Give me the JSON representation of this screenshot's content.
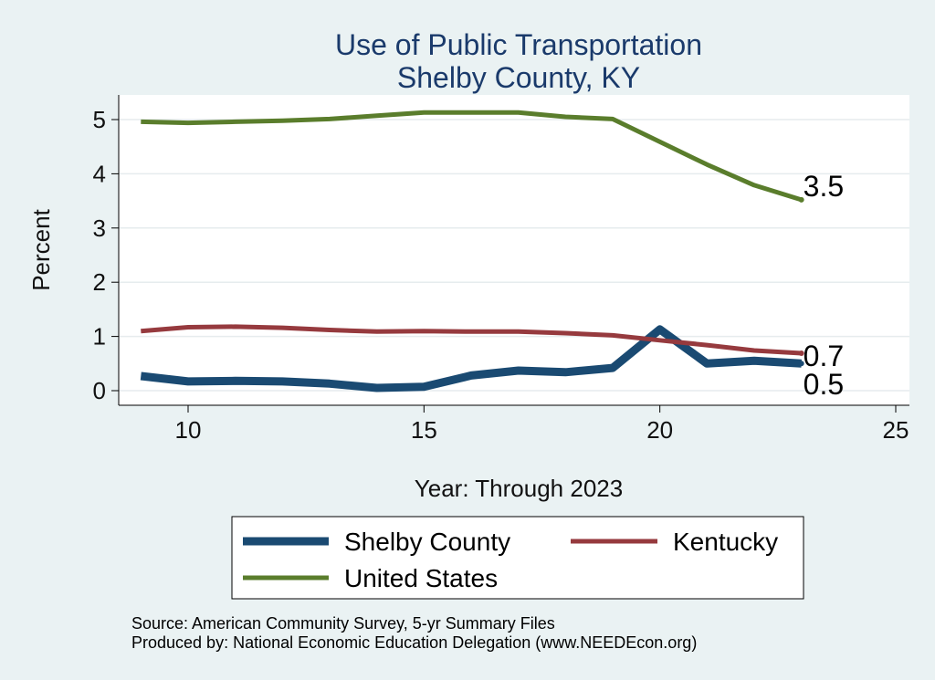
{
  "chart_data": {
    "type": "line",
    "title": "Use of Public Transportation",
    "subtitle": "Shelby County, KY",
    "xlabel": "Year: Through 2023",
    "ylabel": "Percent",
    "xlim": [
      9,
      25
    ],
    "ylim": [
      0,
      5.2
    ],
    "xticks": [
      10,
      15,
      20,
      25
    ],
    "yticks": [
      0,
      1,
      2,
      3,
      4,
      5
    ],
    "grid": true,
    "legend_position": "bottom",
    "x": [
      9,
      10,
      11,
      12,
      13,
      14,
      15,
      16,
      17,
      18,
      19,
      20,
      21,
      22,
      23
    ],
    "series": [
      {
        "name": "Shelby County",
        "color": "#1a4a72",
        "width": 9,
        "values": [
          0.27,
          0.17,
          0.18,
          0.17,
          0.13,
          0.05,
          0.07,
          0.28,
          0.37,
          0.34,
          0.42,
          1.13,
          0.5,
          0.55,
          0.5
        ],
        "end_label": "0.5"
      },
      {
        "name": "Kentucky",
        "color": "#963a3e",
        "width": 5,
        "values": [
          1.1,
          1.17,
          1.18,
          1.16,
          1.12,
          1.09,
          1.1,
          1.09,
          1.09,
          1.06,
          1.02,
          0.93,
          0.84,
          0.74,
          0.69
        ],
        "end_label": "0.7"
      },
      {
        "name": "United States",
        "color": "#5a7d2c",
        "width": 5,
        "values": [
          4.96,
          4.94,
          4.96,
          4.98,
          5.01,
          5.07,
          5.13,
          5.13,
          5.13,
          5.05,
          5.01,
          4.59,
          4.17,
          3.79,
          3.52
        ],
        "end_label": "3.5"
      }
    ]
  },
  "legend": {
    "items": [
      {
        "name": "Shelby County",
        "color": "#1a4a72"
      },
      {
        "name": "Kentucky",
        "color": "#963a3e"
      },
      {
        "name": "United States",
        "color": "#5a7d2c"
      }
    ]
  },
  "notes": {
    "source": "Source: American Community Survey, 5-yr Summary Files",
    "produced": "Produced by: National Economic Education Delegation (www.NEEDEcon.org)"
  }
}
